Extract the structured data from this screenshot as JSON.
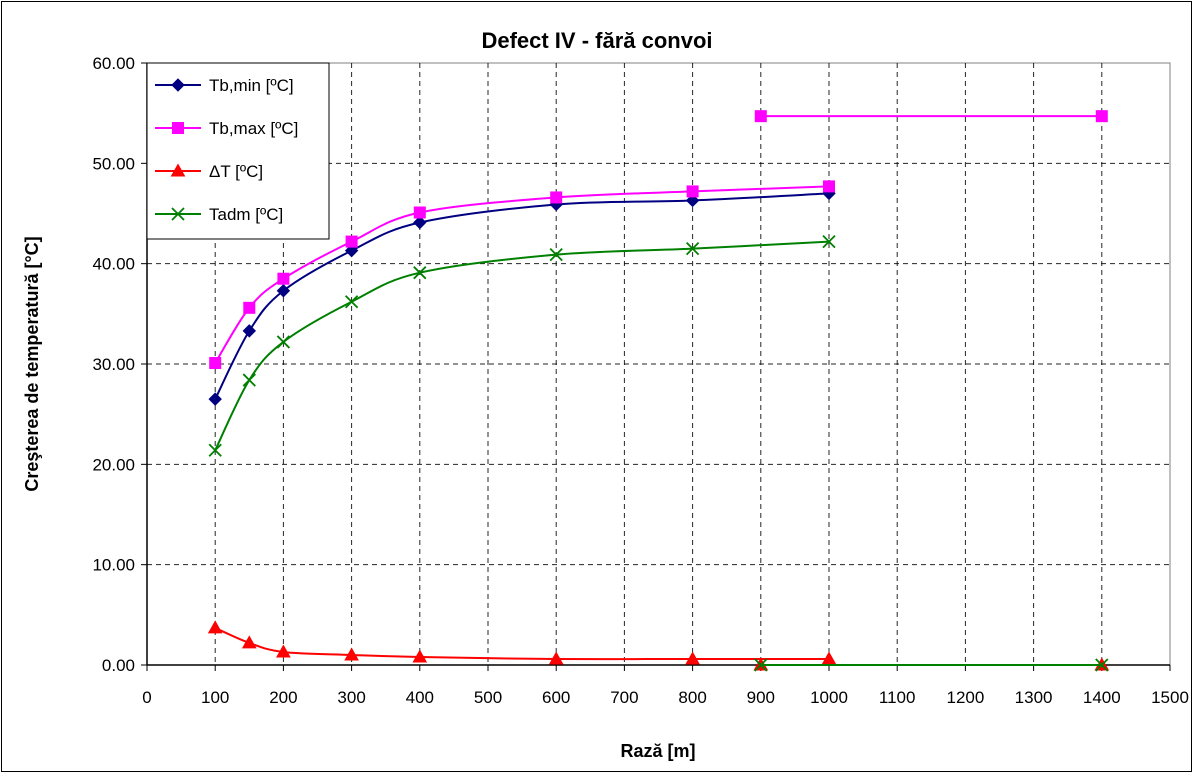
{
  "chart_data": {
    "type": "line",
    "title": "Defect IV - fără convoi",
    "xlabel": "Rază [m]",
    "ylabel": "Creşterea de temperatură [°C]",
    "xlim": [
      0,
      1500
    ],
    "ylim": [
      0,
      60
    ],
    "x_ticks": [
      "0",
      "100",
      "200",
      "300",
      "400",
      "500",
      "600",
      "700",
      "800",
      "900",
      "1000",
      "1100",
      "1200",
      "1300",
      "1400",
      "1500"
    ],
    "y_ticks": [
      "0.00",
      "10.00",
      "20.00",
      "30.00",
      "40.00",
      "50.00",
      "60.00"
    ],
    "grid": true,
    "legend_position": "top-left",
    "series": [
      {
        "name": "Tb,min [ºC]",
        "color": "#000080",
        "marker": "diamond",
        "segments": [
          [
            [
              100,
              26.5
            ],
            [
              150,
              33.3
            ],
            [
              200,
              37.3
            ],
            [
              300,
              41.3
            ],
            [
              400,
              44.1
            ],
            [
              600,
              45.9
            ],
            [
              800,
              46.3
            ],
            [
              1000,
              47.0
            ]
          ]
        ]
      },
      {
        "name": "Tb,max [ºC]",
        "color": "#ff00ff",
        "marker": "square",
        "segments": [
          [
            [
              100,
              30.1
            ],
            [
              150,
              35.6
            ],
            [
              200,
              38.5
            ],
            [
              300,
              42.2
            ],
            [
              400,
              45.1
            ],
            [
              600,
              46.6
            ],
            [
              800,
              47.2
            ],
            [
              1000,
              47.7
            ]
          ],
          [
            [
              900,
              54.7
            ],
            [
              1400,
              54.7
            ]
          ]
        ]
      },
      {
        "name": "ΔT [ºC]",
        "color": "#ff0000",
        "marker": "triangle",
        "segments": [
          [
            [
              100,
              3.7
            ],
            [
              150,
              2.2
            ],
            [
              200,
              1.3
            ],
            [
              300,
              1.0
            ],
            [
              400,
              0.8
            ],
            [
              600,
              0.6
            ],
            [
              800,
              0.6
            ],
            [
              1000,
              0.6
            ]
          ],
          [
            [
              900,
              0.0
            ],
            [
              1400,
              0.0
            ]
          ]
        ]
      },
      {
        "name": "Tadm [ºC]",
        "color": "#008000",
        "marker": "x",
        "segments": [
          [
            [
              100,
              21.4
            ],
            [
              150,
              28.4
            ],
            [
              200,
              32.2
            ],
            [
              300,
              36.2
            ],
            [
              400,
              39.1
            ],
            [
              600,
              40.9
            ],
            [
              800,
              41.5
            ],
            [
              1000,
              42.2
            ]
          ],
          [
            [
              900,
              0.0
            ],
            [
              1400,
              0.0
            ]
          ]
        ]
      }
    ]
  }
}
